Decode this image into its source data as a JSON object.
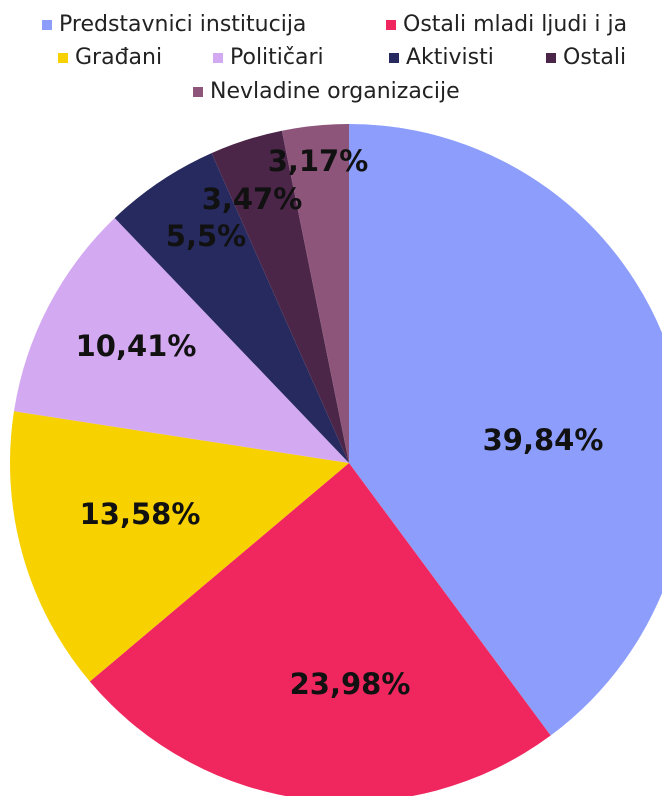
{
  "chart_data": {
    "type": "pie",
    "categories": [
      "Predstavnici institucija",
      "Ostali mladi ljudi i ja",
      "Građani",
      "Političari",
      "Aktivisti",
      "Ostali",
      "Nevladine organizacije"
    ],
    "values": [
      39.84,
      23.98,
      13.58,
      10.41,
      5.5,
      3.47,
      3.17
    ],
    "value_labels": [
      "39,84%",
      "23,98%",
      "13,58%",
      "10,41%",
      "5,5%",
      "3,47%",
      "3,17%"
    ],
    "colors": [
      "#8c9dfc",
      "#f0275f",
      "#f8d100",
      "#d3a9f1",
      "#272a5f",
      "#4b2649",
      "#8d5579"
    ]
  }
}
